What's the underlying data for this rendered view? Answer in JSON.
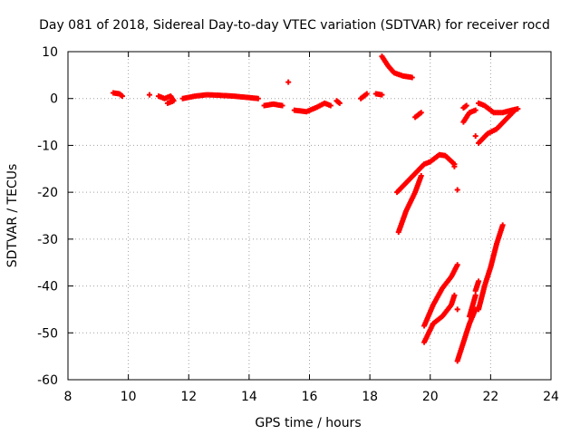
{
  "chart_data": {
    "type": "scatter",
    "title": "Day 081 of 2018, Sidereal Day-to-day VTEC variation (SDTVAR) for receiver rocd",
    "xlabel": "GPS time / hours",
    "ylabel": "SDTVAR / TECUs",
    "xlim": [
      8,
      24
    ],
    "ylim": [
      -60,
      10
    ],
    "xticks": [
      8,
      10,
      12,
      14,
      16,
      18,
      20,
      22,
      24
    ],
    "yticks": [
      -60,
      -50,
      -40,
      -30,
      -20,
      -10,
      0,
      10
    ],
    "grid": true,
    "legend": "none",
    "marker": "+",
    "color": "#ff0000",
    "segments": [
      [
        [
          9.5,
          1.2
        ],
        [
          9.7,
          1.0
        ],
        [
          9.8,
          0.5
        ]
      ],
      [
        [
          10.7,
          0.8
        ]
      ],
      [
        [
          11.0,
          0.5
        ],
        [
          11.2,
          0.0
        ],
        [
          11.4,
          0.5
        ],
        [
          11.5,
          -0.5
        ],
        [
          11.3,
          -1.0
        ]
      ],
      [
        [
          11.8,
          0.0
        ],
        [
          12.2,
          0.5
        ],
        [
          12.6,
          0.8
        ],
        [
          13.0,
          0.7
        ],
        [
          13.5,
          0.5
        ],
        [
          14.0,
          0.2
        ],
        [
          14.3,
          0.0
        ]
      ],
      [
        [
          14.5,
          -1.5
        ],
        [
          14.8,
          -1.2
        ],
        [
          15.1,
          -1.5
        ]
      ],
      [
        [
          15.3,
          3.5
        ]
      ],
      [
        [
          15.5,
          -2.5
        ],
        [
          15.9,
          -2.8
        ],
        [
          16.2,
          -2.0
        ],
        [
          16.5,
          -1.0
        ],
        [
          16.7,
          -1.5
        ]
      ],
      [
        [
          16.9,
          -0.5
        ],
        [
          17.0,
          -1.0
        ]
      ],
      [
        [
          17.7,
          0.0
        ],
        [
          17.9,
          1.0
        ]
      ],
      [
        [
          18.2,
          1.0
        ],
        [
          18.4,
          0.8
        ]
      ],
      [
        [
          18.4,
          9.0
        ],
        [
          18.6,
          7.0
        ],
        [
          18.8,
          5.5
        ],
        [
          19.1,
          4.8
        ],
        [
          19.4,
          4.5
        ]
      ],
      [
        [
          19.5,
          -4.0
        ],
        [
          19.7,
          -3.0
        ]
      ],
      [
        [
          18.9,
          -20.0
        ],
        [
          19.2,
          -18.0
        ],
        [
          19.5,
          -16.0
        ],
        [
          19.8,
          -14.0
        ],
        [
          20.0,
          -13.5
        ],
        [
          20.3,
          -12.0
        ],
        [
          20.5,
          -12.2
        ],
        [
          20.8,
          -14.0
        ]
      ],
      [
        [
          18.95,
          -28.5
        ],
        [
          19.2,
          -24.0
        ],
        [
          19.5,
          -20.0
        ],
        [
          19.7,
          -16.5
        ]
      ],
      [
        [
          20.8,
          -14.5
        ]
      ],
      [
        [
          20.9,
          -19.5
        ]
      ],
      [
        [
          19.8,
          -48.5
        ],
        [
          20.1,
          -44.0
        ],
        [
          20.4,
          -40.5
        ],
        [
          20.7,
          -38.0
        ],
        [
          20.9,
          -35.5
        ]
      ],
      [
        [
          19.8,
          -52.0
        ],
        [
          20.1,
          -48.0
        ],
        [
          20.4,
          -46.5
        ],
        [
          20.7,
          -44.0
        ],
        [
          20.8,
          -42.0
        ]
      ],
      [
        [
          20.9,
          -45.0
        ]
      ],
      [
        [
          20.9,
          -56.0
        ],
        [
          21.1,
          -52.0
        ],
        [
          21.3,
          -48.0
        ],
        [
          21.5,
          -45.0
        ]
      ],
      [
        [
          21.3,
          -46.5
        ],
        [
          21.5,
          -42.0
        ]
      ],
      [
        [
          21.5,
          -41.0
        ],
        [
          21.6,
          -39.0
        ]
      ],
      [
        [
          21.6,
          -45.0
        ],
        [
          21.8,
          -40.0
        ],
        [
          22.0,
          -36.0
        ],
        [
          22.2,
          -31.0
        ],
        [
          22.4,
          -27.0
        ]
      ],
      [
        [
          21.1,
          -5.0
        ],
        [
          21.3,
          -3.0
        ],
        [
          21.5,
          -2.5
        ]
      ],
      [
        [
          21.1,
          -2.0
        ],
        [
          21.2,
          -1.5
        ]
      ],
      [
        [
          21.6,
          -1.0
        ],
        [
          21.8,
          -1.5
        ],
        [
          22.1,
          -3.0
        ],
        [
          22.4,
          -3.0
        ],
        [
          22.7,
          -2.5
        ],
        [
          22.9,
          -2.2
        ]
      ],
      [
        [
          21.5,
          -8.0
        ]
      ],
      [
        [
          21.6,
          -9.5
        ],
        [
          21.9,
          -7.5
        ],
        [
          22.2,
          -6.5
        ],
        [
          22.5,
          -4.5
        ],
        [
          22.8,
          -2.5
        ]
      ]
    ]
  }
}
